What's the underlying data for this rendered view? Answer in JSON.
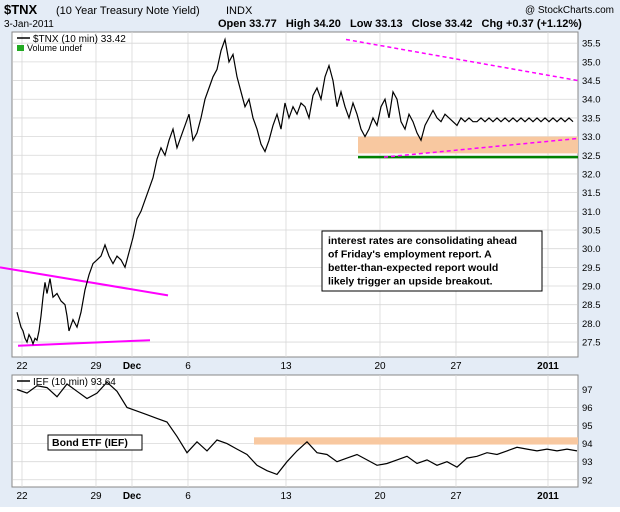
{
  "header": {
    "symbol": "$TNX",
    "description": "(10 Year Treasury Note Yield)",
    "exchange": "INDX",
    "date": "3-Jan-2011",
    "ohlc": "Open 33.77   High 34.20   Low 33.13   Close 33.42   Chg +0.37 (+1.12%)",
    "source": "@ StockCharts.com"
  },
  "chart_data": [
    {
      "type": "line",
      "legend": [
        "$TNX (10 min) 33.42",
        "Volume undef"
      ],
      "x_ticks": [
        "22",
        "29",
        "Dec",
        "6",
        "13",
        "20",
        "27",
        "2011"
      ],
      "y_ticks": [
        "27.5",
        "28.0",
        "28.5",
        "29.0",
        "29.5",
        "30.0",
        "30.5",
        "31.0",
        "31.5",
        "32.0",
        "32.5",
        "33.0",
        "33.5",
        "34.0",
        "34.5",
        "35.0",
        "35.5"
      ],
      "ylim": [
        27.1,
        35.8
      ],
      "series": [
        {
          "name": "$TNX (10 min)",
          "x": [
            0,
            2,
            4,
            6,
            8,
            10,
            12,
            14,
            16,
            18,
            20,
            22,
            24,
            26,
            28,
            30,
            33,
            36,
            40,
            44,
            48,
            50,
            52,
            56,
            60,
            64,
            68,
            72,
            76,
            80,
            84,
            88,
            92,
            96,
            100,
            104,
            108,
            112,
            116,
            120,
            124,
            128,
            132,
            136,
            140,
            144,
            148,
            152,
            156,
            160,
            164,
            168,
            172,
            176,
            180,
            184,
            188,
            192,
            196,
            200,
            204,
            208,
            212,
            216,
            220,
            224,
            228,
            232,
            236,
            240,
            244,
            248,
            252,
            256,
            260,
            264,
            268,
            272,
            276,
            280,
            284,
            288,
            292,
            296,
            300,
            304,
            308,
            312,
            316,
            320,
            324,
            328,
            332,
            336,
            340,
            344,
            348,
            352,
            356,
            360,
            364,
            368,
            372,
            376,
            380,
            384,
            388,
            392,
            396,
            400,
            404,
            408,
            412,
            416,
            420,
            424,
            428,
            432,
            436,
            440,
            444,
            448,
            452,
            456,
            460,
            464,
            468,
            472,
            476,
            480,
            484,
            488,
            492,
            496,
            500,
            504,
            508,
            512,
            516,
            520,
            524,
            528,
            532,
            536,
            540,
            544,
            548,
            552,
            556
          ],
          "values": [
            28.3,
            28.1,
            27.9,
            27.8,
            27.6,
            27.5,
            27.7,
            27.6,
            27.45,
            27.6,
            27.55,
            27.8,
            28.2,
            28.7,
            29.1,
            28.8,
            29.2,
            28.7,
            28.8,
            28.6,
            28.5,
            28.2,
            27.8,
            28.1,
            27.9,
            28.3,
            28.9,
            29.3,
            29.6,
            29.7,
            29.8,
            30.1,
            29.8,
            29.6,
            29.8,
            29.7,
            29.5,
            29.9,
            30.3,
            30.8,
            31.0,
            31.3,
            31.6,
            31.9,
            32.4,
            32.7,
            32.5,
            32.9,
            33.2,
            32.7,
            33.0,
            33.3,
            33.6,
            32.9,
            33.1,
            33.5,
            34.0,
            34.3,
            34.6,
            34.8,
            35.3,
            35.6,
            35.0,
            35.2,
            34.6,
            34.2,
            33.8,
            34.0,
            33.5,
            33.2,
            32.8,
            32.6,
            32.9,
            33.3,
            33.6,
            33.2,
            33.9,
            33.5,
            33.8,
            33.6,
            33.9,
            33.8,
            33.5,
            34.1,
            34.3,
            34.0,
            34.6,
            34.9,
            34.5,
            33.8,
            34.2,
            33.8,
            33.5,
            33.9,
            33.6,
            33.2,
            33.0,
            33.2,
            33.5,
            33.3,
            33.8,
            34.0,
            33.5,
            34.2,
            34.0,
            33.4,
            33.2,
            33.6,
            33.4,
            33.1,
            32.9,
            33.3,
            33.5,
            33.7,
            33.5,
            33.4,
            33.6,
            33.5,
            33.4,
            33.3,
            33.5,
            33.4,
            33.5,
            33.4,
            33.4,
            33.5,
            33.4,
            33.5,
            33.4,
            33.5,
            33.4,
            33.5,
            33.4,
            33.5,
            33.4,
            33.5,
            33.4,
            33.5,
            33.4,
            33.5,
            33.4,
            33.5,
            33.4,
            33.5,
            33.4,
            33.5,
            33.4,
            33.5,
            33.4
          ]
        }
      ],
      "annotation": "interest rates are consolidating ahead of Friday's employment report. A better-than-expected report would likely trigger an upside breakout.",
      "colors": {
        "price": "#000000",
        "trendline": "#ff00ff",
        "support": "#008000",
        "zone": "#f8c8a0"
      }
    },
    {
      "type": "line",
      "legend": [
        "IEF (10 min) 93.64"
      ],
      "label": "Bond ETF (IEF)",
      "x_ticks": [
        "22",
        "29",
        "Dec",
        "6",
        "13",
        "20",
        "27",
        "2011"
      ],
      "y_ticks": [
        "92",
        "93",
        "94",
        "95",
        "96",
        "97"
      ],
      "ylim": [
        91.6,
        97.8
      ],
      "series": [
        {
          "name": "IEF (10 min)",
          "x": [
            0,
            10,
            20,
            30,
            40,
            50,
            60,
            70,
            80,
            90,
            100,
            110,
            120,
            130,
            140,
            150,
            160,
            170,
            180,
            190,
            200,
            210,
            220,
            230,
            240,
            250,
            260,
            270,
            280,
            290,
            300,
            310,
            320,
            330,
            340,
            350,
            360,
            370,
            380,
            390,
            400,
            410,
            420,
            430,
            440,
            450,
            460,
            470,
            480,
            490,
            500,
            510,
            520,
            530,
            540,
            550,
            560
          ],
          "values": [
            97.0,
            96.8,
            97.2,
            97.1,
            96.6,
            97.3,
            96.9,
            96.5,
            96.8,
            97.4,
            96.9,
            96.0,
            95.8,
            95.6,
            95.4,
            95.2,
            94.4,
            93.5,
            94.1,
            93.6,
            94.2,
            94.0,
            93.7,
            93.4,
            92.8,
            92.5,
            92.3,
            93.0,
            93.6,
            94.1,
            93.5,
            93.4,
            93.0,
            93.2,
            93.4,
            93.1,
            92.8,
            92.9,
            93.1,
            93.3,
            92.9,
            93.1,
            92.8,
            93.0,
            92.7,
            93.2,
            93.3,
            93.5,
            93.4,
            93.6,
            93.8,
            93.7,
            93.6,
            93.7,
            93.6,
            93.7,
            93.6
          ]
        }
      ],
      "colors": {
        "price": "#000000",
        "resistance": "#f8c8a0"
      }
    }
  ]
}
